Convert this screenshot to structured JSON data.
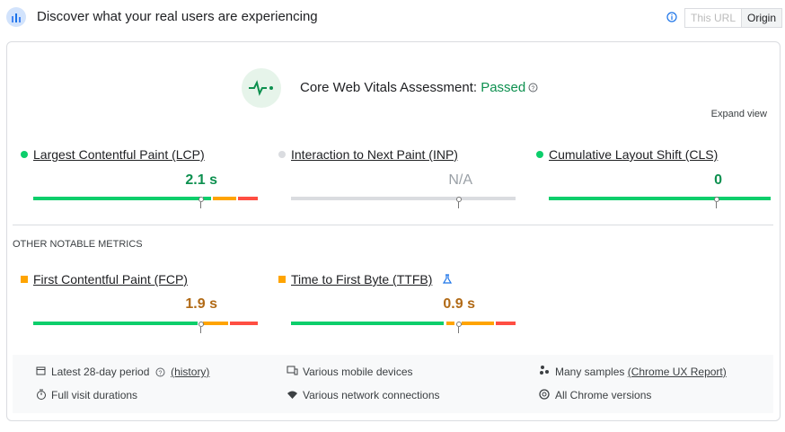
{
  "header": {
    "title": "Discover what your real users are experiencing",
    "tabs": [
      "This URL",
      "Origin"
    ]
  },
  "assessment": {
    "label": "Core Web Vitals Assessment:",
    "status": "Passed",
    "expand": "Expand view"
  },
  "core_metrics": [
    {
      "name": "Largest Contentful Paint (LCP)",
      "value": "2.1 s"
    },
    {
      "name": "Interaction to Next Paint (INP)",
      "value": "N/A"
    },
    {
      "name": "Cumulative Layout Shift (CLS)",
      "value": "0"
    }
  ],
  "other_heading": "OTHER NOTABLE METRICS",
  "other_metrics": [
    {
      "name": "First Contentful Paint (FCP)",
      "value": "1.9 s"
    },
    {
      "name": "Time to First Byte (TTFB)",
      "value": "0.9 s"
    }
  ],
  "details": [
    {
      "text": "Latest 28-day period",
      "link": "(history)"
    },
    {
      "text": "Various mobile devices"
    },
    {
      "text": "Many samples",
      "link": "(Chrome UX Report)"
    },
    {
      "text": "Full visit durations"
    },
    {
      "text": "Various network connections"
    },
    {
      "text": "All Chrome versions"
    }
  ]
}
